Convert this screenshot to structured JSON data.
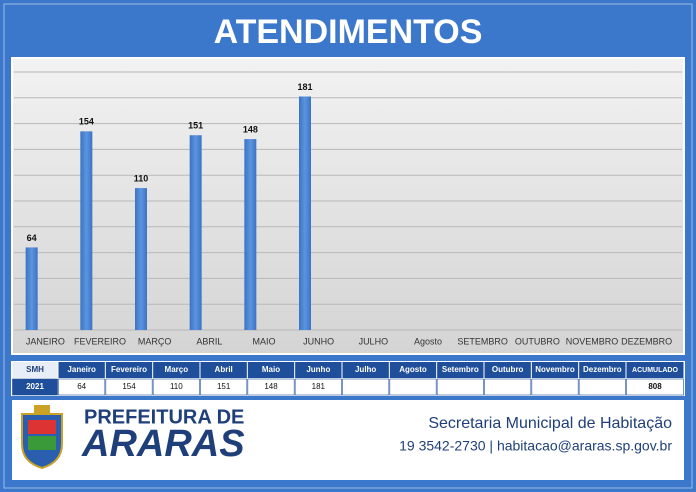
{
  "chart_data": {
    "type": "bar",
    "title": "ATENDIMENTOS",
    "categories": [
      "JANEIRO",
      "FEVEREIRO",
      "MARÇO",
      "ABRIL",
      "MAIO",
      "JUNHO",
      "JULHO",
      "Agosto",
      "SETEMBRO",
      "OUTUBRO",
      "NOVEMBRO",
      "DEZEMBRO"
    ],
    "values": [
      64,
      154,
      110,
      151,
      148,
      181,
      null,
      null,
      null,
      null,
      null,
      null
    ],
    "color": "#4a86d4",
    "ylim": [
      0,
      200
    ],
    "yticks": [
      0,
      20,
      40,
      60,
      80,
      100,
      120,
      140,
      160,
      180,
      200
    ],
    "grid": true
  },
  "table": {
    "header": [
      "SMH",
      "Janeiro",
      "Fevereiro",
      "Março",
      "Abril",
      "Maio",
      "Junho",
      "Julho",
      "Agosto",
      "Setembro",
      "Outubro",
      "Novembro",
      "Dezembro",
      "ACUMULADO"
    ],
    "row_label": "2021",
    "values": [
      64,
      154,
      110,
      151,
      148,
      181,
      null,
      null,
      null,
      null,
      null,
      null
    ],
    "total": 808
  },
  "footer": {
    "org_line1": "PREFEITURA DE",
    "org_line2": "ARARAS",
    "department": "Secretaria Municipal de Habitação",
    "contact": "19 3542-2730 | habitacao@araras.sp.gov.br"
  }
}
